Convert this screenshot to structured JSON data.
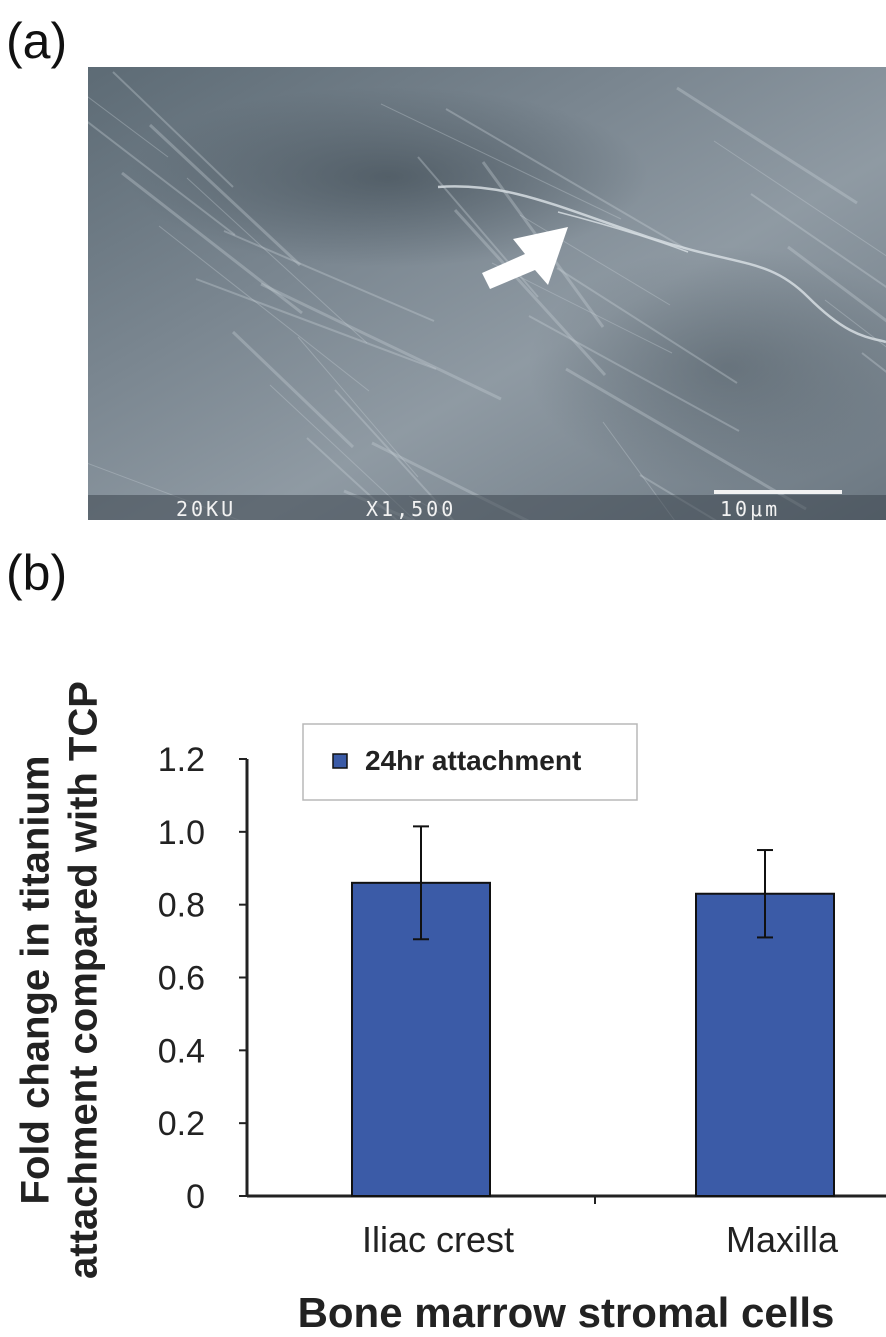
{
  "panel_a": {
    "label": "(a)",
    "micrograph": {
      "accelerating_voltage": "20KU",
      "magnification": "X1,500",
      "scale_bar": "10μm",
      "arrow": "arrow-icon"
    }
  },
  "panel_b": {
    "label": "(b)"
  },
  "colors": {
    "bar": "#3b5ba7",
    "axis": "#222222"
  },
  "chart_data": {
    "type": "bar",
    "categories": [
      "Iliac crest",
      "Maxilla"
    ],
    "series": [
      {
        "name": "24hr attachment",
        "values": [
          0.86,
          0.83
        ],
        "error": [
          0.155,
          0.12
        ]
      }
    ],
    "ylim": [
      0,
      1.2
    ],
    "yticks": [
      "0",
      "0.2",
      "0.4",
      "0.6",
      "0.8",
      "1.0",
      "1.2"
    ],
    "xlabel": "Bone marrow stromal cells",
    "ylabel_lines": [
      "Fold change in titanium",
      "attachment compared with TCP"
    ],
    "legend": "top-left",
    "grid": false
  }
}
